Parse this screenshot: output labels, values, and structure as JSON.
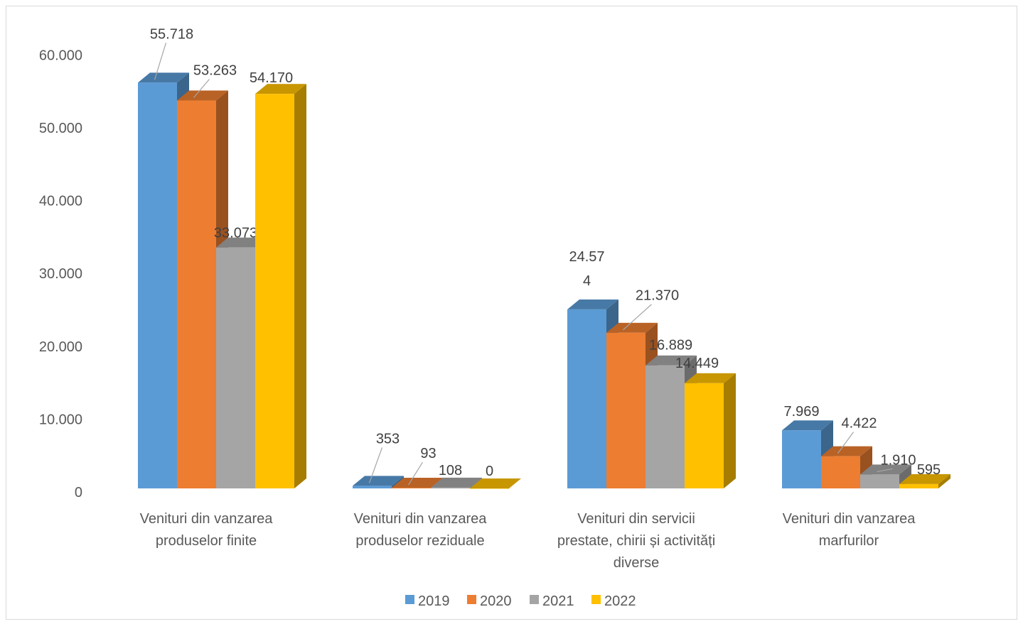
{
  "chart_data": {
    "type": "bar",
    "style": "3d-clustered-column",
    "categories": [
      "Venituri din vanzarea produselor finite",
      "Venituri din vanzarea produselor reziduale",
      "Venituri din servicii prestate, chirii și activități diverse",
      "Venituri din vanzarea marfurilor"
    ],
    "category_lines": [
      [
        "Venituri din vanzarea",
        "produselor finite"
      ],
      [
        "Venituri din vanzarea",
        "produselor reziduale"
      ],
      [
        "Venituri din servicii",
        "prestate, chirii și activități",
        "diverse"
      ],
      [
        "Venituri din vanzarea",
        "marfurilor"
      ]
    ],
    "series": [
      {
        "name": "2019",
        "color": "#5b9bd5",
        "values": [
          55718,
          353,
          24574,
          7969
        ],
        "labels": [
          "55.718",
          "353",
          "24.57\n4",
          "7.969"
        ]
      },
      {
        "name": "2020",
        "color": "#ed7d31",
        "values": [
          53263,
          93,
          21370,
          4422
        ],
        "labels": [
          "53.263",
          "93",
          "21.370",
          "4.422"
        ]
      },
      {
        "name": "2021",
        "color": "#a5a5a5",
        "values": [
          33073,
          108,
          16889,
          1910
        ],
        "labels": [
          "33.073",
          "108",
          "16.889",
          "1.910"
        ]
      },
      {
        "name": "2022",
        "color": "#ffc000",
        "values": [
          54170,
          0,
          14449,
          595
        ],
        "labels": [
          "54.170",
          "0",
          "14.449",
          "595"
        ]
      }
    ],
    "y_ticks": [
      "0",
      "10.000",
      "20.000",
      "30.000",
      "40.000",
      "50.000",
      "60.000"
    ],
    "ylim": [
      0,
      60000
    ],
    "grid": false,
    "legend_position": "bottom"
  }
}
